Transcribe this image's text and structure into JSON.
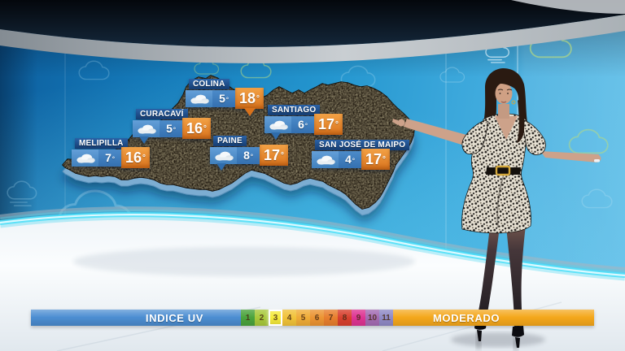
{
  "labels": [
    {
      "city": "COLINA",
      "icon": "cloudy-icon",
      "low": "5",
      "high": "18"
    },
    {
      "city": "CURACAVÍ",
      "icon": "cloudy-icon",
      "low": "5",
      "high": "16"
    },
    {
      "city": "MELIPILLA",
      "icon": "cloudy-icon",
      "low": "7",
      "high": "16"
    },
    {
      "city": "SANTIAGO",
      "icon": "cloudy-icon",
      "low": "6",
      "high": "17"
    },
    {
      "city": "PAINE",
      "icon": "cloudy-icon",
      "low": "8",
      "high": "17"
    },
    {
      "city": "SAN JOSÉ DE MAIPO",
      "icon": "cloudy-icon",
      "low": "4",
      "high": "17"
    }
  ],
  "degree_symbol": "°",
  "uv": {
    "title": "INDICE UV",
    "status": "MODERADO",
    "selected_value": "3",
    "label_bg": "#4c8ed2",
    "status_bg": "#f4a71b",
    "levels": [
      {
        "value": "1",
        "color": "#4aa33c"
      },
      {
        "value": "2",
        "color": "#a8c93b"
      },
      {
        "value": "3",
        "color": "#f5ea3a"
      },
      {
        "value": "4",
        "color": "#f1c239"
      },
      {
        "value": "5",
        "color": "#efac37"
      },
      {
        "value": "6",
        "color": "#ec9433"
      },
      {
        "value": "7",
        "color": "#e77e2d"
      },
      {
        "value": "8",
        "color": "#d8402e"
      },
      {
        "value": "9",
        "color": "#de3492"
      },
      {
        "value": "10",
        "color": "#a46cb3"
      },
      {
        "value": "11",
        "color": "#8f8ac6"
      }
    ]
  },
  "colors": {
    "label_title_blue": "#1c4a84",
    "label_body_blue": "#3d7cbd",
    "label_orange": "#e0821f",
    "wall_blue": "#2496cf",
    "led_strip_cyan": "#49d6f2"
  }
}
